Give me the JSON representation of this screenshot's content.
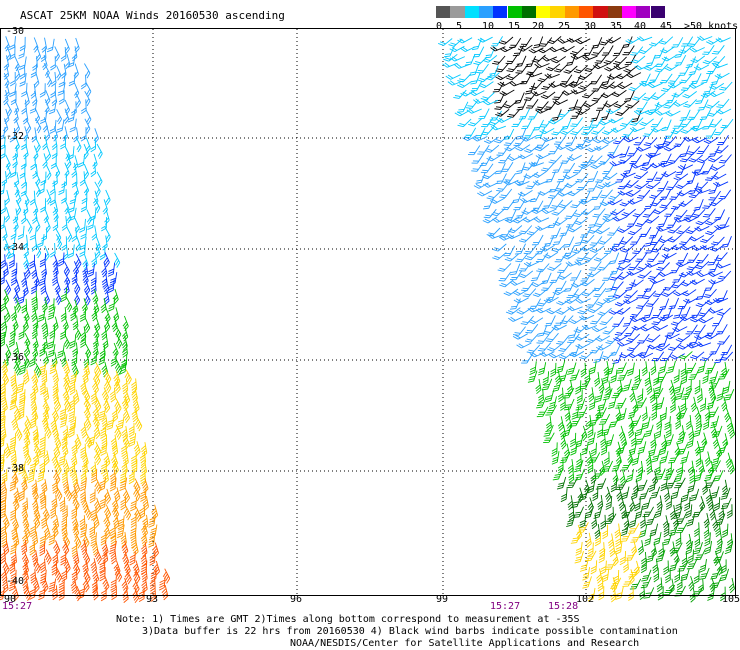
{
  "title": "ASCAT 25KM NOAA Winds 20160530 ascending",
  "legend": {
    "labels": [
      "0",
      "5",
      "10",
      "15",
      "20",
      "25",
      "30",
      "35",
      "40",
      "45",
      ">50 knots"
    ],
    "colors": [
      "#555555",
      "#9a9a9a",
      "#00e0ff",
      "#2aa0ff",
      "#0033ff",
      "#00c000",
      "#007000",
      "#ffff00",
      "#ffd400",
      "#ff9900",
      "#ff5500",
      "#d01010",
      "#8b3a10",
      "#ff00ff",
      "#a000c0",
      "#3a0070"
    ]
  },
  "lat_labels": [
    "-30",
    "-32",
    "-34",
    "-36",
    "-38",
    "-40"
  ],
  "lon_labels": [
    "90",
    "93",
    "96",
    "99",
    "102",
    "105"
  ],
  "time_labels": [
    "15:27",
    "15:27",
    "15:28"
  ],
  "notes": [
    "Note: 1) Times are GMT 2)Times along bottom correspond to measurement at -35S",
    "3)Data buffer is 22 hrs from 20160530 4) Black wind barbs indicate possible contamination",
    "NOAA/NESDIS/Center for Satellite Applications and Research"
  ]
}
